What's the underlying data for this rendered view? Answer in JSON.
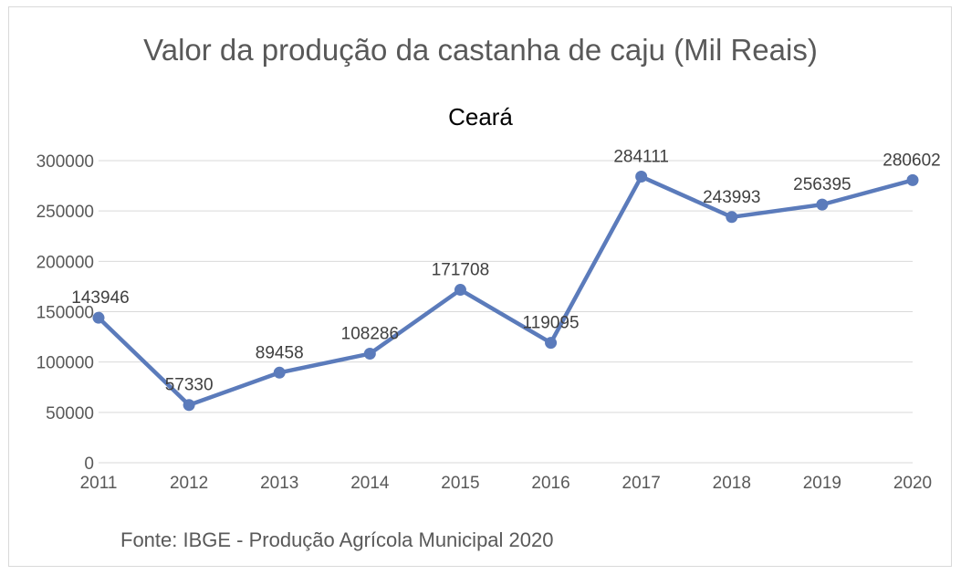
{
  "colors": {
    "series": "#5b7bbb",
    "grid": "#d9d9d9",
    "text": "#595959"
  },
  "source_note": "Fonte: IBGE - Produção Agrícola Municipal 2020",
  "chart_data": {
    "type": "line",
    "title": "Valor da produção da castanha de caju (Mil Reais)",
    "subtitle": "Ceará",
    "xlabel": "",
    "ylabel": "",
    "categories": [
      "2011",
      "2012",
      "2013",
      "2014",
      "2015",
      "2016",
      "2017",
      "2018",
      "2019",
      "2020"
    ],
    "series": [
      {
        "values": [
          143946,
          57330,
          89458,
          108286,
          171708,
          119095,
          284111,
          243993,
          256395,
          280602
        ]
      }
    ],
    "ylim": [
      0,
      300000
    ],
    "yticks": [
      0,
      50000,
      100000,
      150000,
      200000,
      250000,
      300000
    ],
    "grid": true,
    "legend": "none",
    "data_labels": true
  }
}
